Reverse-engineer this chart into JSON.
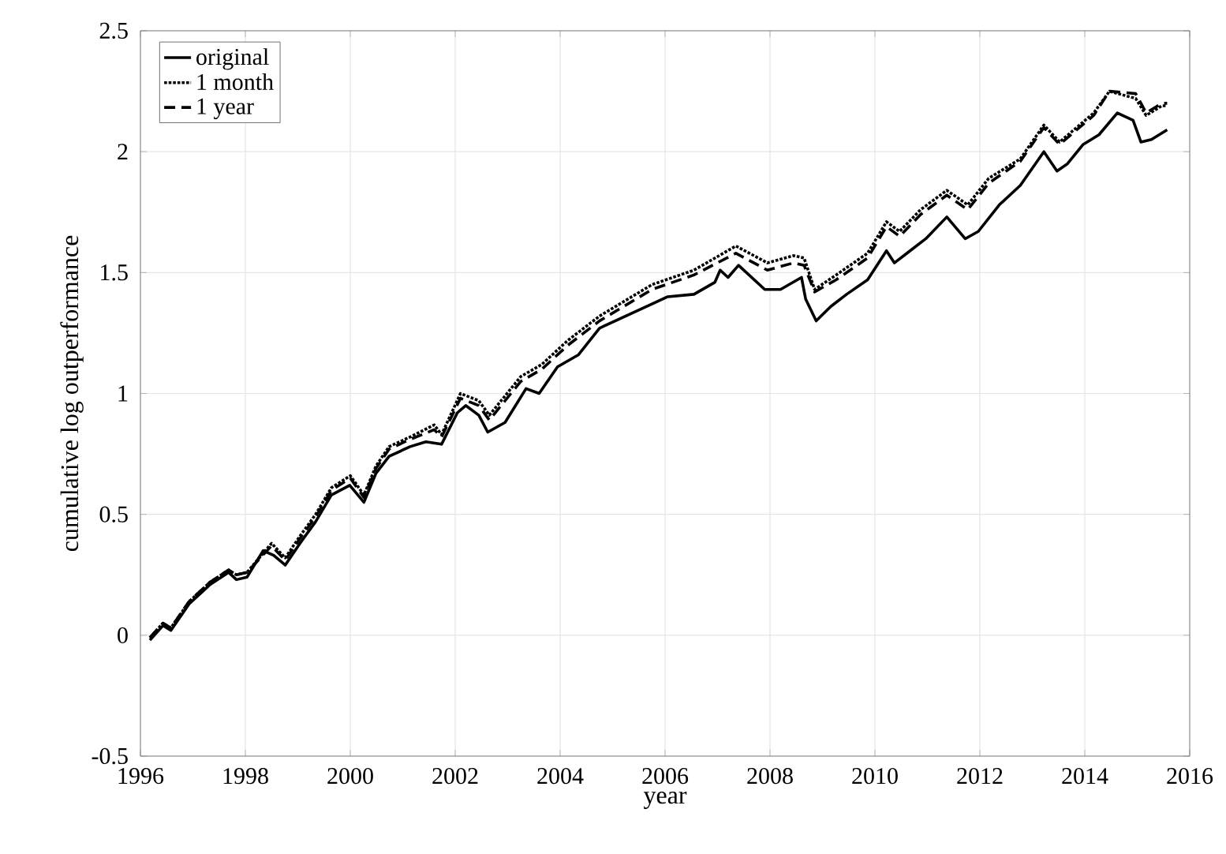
{
  "chart_data": {
    "type": "line",
    "xlabel": "year",
    "ylabel": "cumulative log outperformance",
    "xlim": [
      1996,
      2016
    ],
    "xticks": [
      1996,
      1998,
      2000,
      2002,
      2004,
      2006,
      2008,
      2010,
      2012,
      2014,
      2016
    ],
    "ylim": [
      -0.5,
      2.5
    ],
    "yticks": [
      -0.5,
      0,
      0.5,
      1,
      1.5,
      2,
      2.5
    ],
    "grid": true,
    "legend": "top left",
    "series": [
      {
        "name": "original",
        "color": "#000000",
        "line_style": "solid",
        "x": [
          1996.18,
          1996.43,
          1996.58,
          1996.93,
          1997.33,
          1997.68,
          1997.83,
          1998.03,
          1998.34,
          1998.54,
          1998.76,
          1999.04,
          1999.34,
          1999.64,
          1999.99,
          2000.26,
          2000.49,
          2000.74,
          2001.14,
          2001.44,
          2001.74,
          2002.04,
          2002.2,
          2002.45,
          2002.62,
          2002.95,
          2003.35,
          2003.6,
          2003.95,
          2004.35,
          2004.75,
          2005.35,
          2005.75,
          2006.05,
          2006.55,
          2006.95,
          2007.05,
          2007.2,
          2007.4,
          2007.9,
          2008.2,
          2008.6,
          2008.68,
          2008.88,
          2009.16,
          2009.46,
          2009.86,
          2010.22,
          2010.37,
          2010.67,
          2010.97,
          2011.37,
          2011.72,
          2011.97,
          2012.37,
          2012.77,
          2013.22,
          2013.47,
          2013.67,
          2013.97,
          2014.27,
          2014.62,
          2014.92,
          2015.07,
          2015.27,
          2015.57
        ],
        "values": [
          -0.02,
          0.04,
          0.02,
          0.13,
          0.21,
          0.26,
          0.23,
          0.24,
          0.35,
          0.33,
          0.29,
          0.38,
          0.47,
          0.58,
          0.62,
          0.55,
          0.67,
          0.74,
          0.78,
          0.8,
          0.79,
          0.92,
          0.95,
          0.91,
          0.84,
          0.88,
          1.02,
          1.0,
          1.11,
          1.16,
          1.27,
          1.33,
          1.37,
          1.4,
          1.41,
          1.46,
          1.51,
          1.48,
          1.53,
          1.43,
          1.43,
          1.48,
          1.39,
          1.3,
          1.36,
          1.41,
          1.47,
          1.59,
          1.54,
          1.59,
          1.64,
          1.73,
          1.64,
          1.67,
          1.78,
          1.86,
          2.0,
          1.92,
          1.95,
          2.03,
          2.07,
          2.16,
          2.13,
          2.04,
          2.05,
          2.09
        ]
      },
      {
        "name": "1 month",
        "color": "#000000",
        "line_style": "dotted",
        "x": [
          1996.18,
          1996.43,
          1996.58,
          1996.93,
          1997.33,
          1997.68,
          1997.83,
          1998.03,
          1998.5,
          1998.76,
          1999.04,
          1999.34,
          1999.64,
          2000.0,
          2000.26,
          2000.49,
          2000.74,
          2001.14,
          2001.6,
          2001.74,
          2002.1,
          2002.45,
          2002.65,
          2003.25,
          2003.65,
          2004.15,
          2004.75,
          2005.75,
          2006.55,
          2007.35,
          2007.95,
          2008.45,
          2008.65,
          2008.85,
          2009.26,
          2009.86,
          2010.22,
          2010.47,
          2010.87,
          2011.37,
          2011.77,
          2012.17,
          2012.77,
          2013.22,
          2013.52,
          2014.17,
          2014.47,
          2014.97,
          2015.17,
          2015.47,
          2015.57
        ],
        "values": [
          -0.01,
          0.05,
          0.03,
          0.14,
          0.22,
          0.27,
          0.25,
          0.26,
          0.38,
          0.32,
          0.41,
          0.5,
          0.61,
          0.66,
          0.58,
          0.7,
          0.78,
          0.82,
          0.87,
          0.83,
          1.0,
          0.97,
          0.91,
          1.07,
          1.12,
          1.22,
          1.32,
          1.45,
          1.51,
          1.61,
          1.54,
          1.57,
          1.56,
          1.43,
          1.49,
          1.58,
          1.71,
          1.67,
          1.76,
          1.84,
          1.78,
          1.89,
          1.97,
          2.11,
          2.04,
          2.16,
          2.25,
          2.22,
          2.15,
          2.19,
          2.19
        ]
      },
      {
        "name": "1 year",
        "color": "#000000",
        "line_style": "dashed",
        "x": [
          1996.18,
          1996.43,
          1996.58,
          1996.93,
          1997.33,
          1997.68,
          1997.83,
          1998.03,
          1998.5,
          1998.76,
          1999.04,
          1999.34,
          1999.64,
          2000.0,
          2000.26,
          2000.49,
          2000.74,
          2001.14,
          2001.6,
          2001.74,
          2002.1,
          2002.45,
          2002.65,
          2003.25,
          2003.65,
          2004.15,
          2004.75,
          2005.75,
          2006.55,
          2007.35,
          2007.95,
          2008.45,
          2008.65,
          2008.85,
          2009.26,
          2009.86,
          2010.22,
          2010.47,
          2010.87,
          2011.37,
          2011.77,
          2012.17,
          2012.77,
          2013.22,
          2013.52,
          2014.17,
          2014.47,
          2014.97,
          2015.17,
          2015.47,
          2015.57
        ],
        "values": [
          -0.01,
          0.05,
          0.03,
          0.14,
          0.22,
          0.27,
          0.25,
          0.26,
          0.37,
          0.31,
          0.4,
          0.49,
          0.6,
          0.65,
          0.57,
          0.69,
          0.77,
          0.81,
          0.85,
          0.82,
          0.98,
          0.95,
          0.89,
          1.05,
          1.1,
          1.2,
          1.3,
          1.43,
          1.49,
          1.58,
          1.51,
          1.54,
          1.53,
          1.42,
          1.47,
          1.56,
          1.69,
          1.65,
          1.74,
          1.82,
          1.76,
          1.87,
          1.96,
          2.1,
          2.03,
          2.15,
          2.25,
          2.24,
          2.16,
          2.2,
          2.2
        ]
      }
    ]
  }
}
